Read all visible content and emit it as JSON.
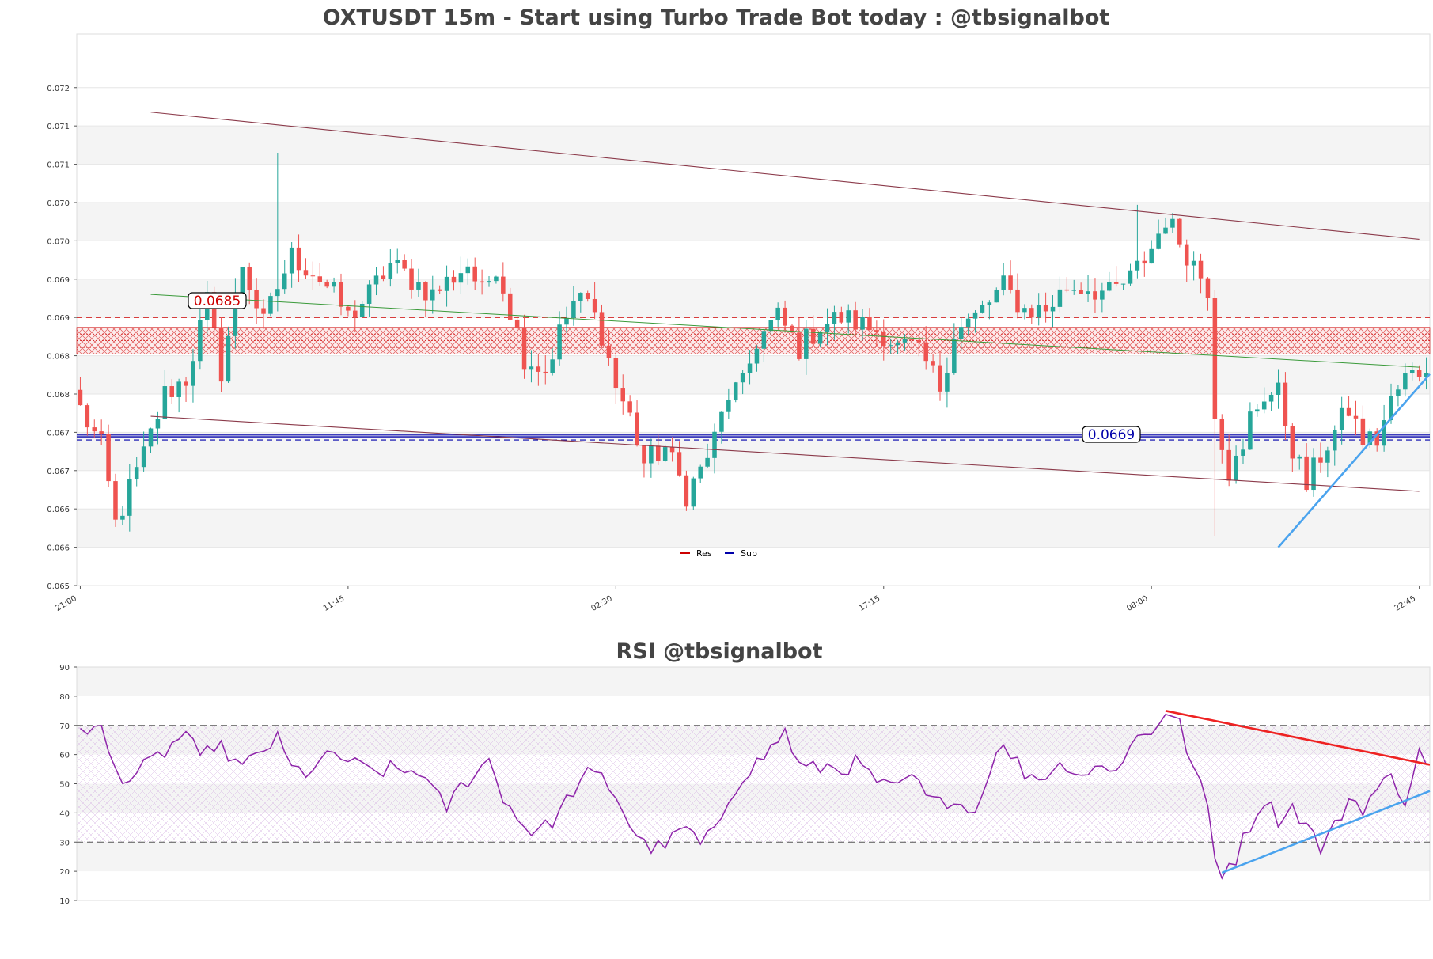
{
  "colors": {
    "up": "#26a69a",
    "down": "#ef5350",
    "res": "#cc0000",
    "sup": "#0000aa",
    "rsi": "#8e24aa",
    "trend_red": "#ee2222",
    "trend_blue": "#4aa3ee",
    "channel": "#8b3a4a",
    "ma": "#3a9a3a",
    "band": "#f4f4f4",
    "title": "#444444"
  },
  "chart_data": [
    {
      "type": "candlestick",
      "title": "OXTUSDT 15m - Start using Turbo Trade Bot today : @tbsignalbot",
      "ylim": [
        0.065,
        0.0722
      ],
      "y_ticks": [
        {
          "value": 0.065,
          "label": "0.065"
        },
        {
          "value": 0.0655,
          "label": "0.066"
        },
        {
          "value": 0.066,
          "label": "0.066"
        },
        {
          "value": 0.0665,
          "label": "0.067"
        },
        {
          "value": 0.067,
          "label": "0.067"
        },
        {
          "value": 0.0675,
          "label": "0.068"
        },
        {
          "value": 0.068,
          "label": "0.068"
        },
        {
          "value": 0.0685,
          "label": "0.069"
        },
        {
          "value": 0.069,
          "label": "0.069"
        },
        {
          "value": 0.0695,
          "label": "0.070"
        },
        {
          "value": 0.07,
          "label": "0.070"
        },
        {
          "value": 0.0705,
          "label": "0.071"
        },
        {
          "value": 0.071,
          "label": "0.071"
        },
        {
          "value": 0.0715,
          "label": "0.072"
        }
      ],
      "x_count": 192,
      "x_ticks": [
        {
          "index": 0,
          "label": "21:00"
        },
        {
          "index": 38,
          "label": "11:45"
        },
        {
          "index": 76,
          "label": "02:30"
        },
        {
          "index": 114,
          "label": "17:15"
        },
        {
          "index": 152,
          "label": "08:00"
        },
        {
          "index": 190,
          "label": "22:45"
        }
      ],
      "resistance": {
        "value": 0.0685,
        "label": "0.0685",
        "zone": [
          0.06802,
          0.06837
        ]
      },
      "support": {
        "value": 0.0669,
        "label": "0.0669",
        "dense": 0.06695
      },
      "legend": [
        {
          "name": "Res",
          "color": "#cc0000"
        },
        {
          "name": "Sup",
          "color": "#0000aa"
        }
      ],
      "lines": [
        {
          "name": "channel-upper",
          "x": [
            10,
            190
          ],
          "y": [
            0.07118,
            0.06952
          ]
        },
        {
          "name": "channel-lower",
          "x": [
            10,
            190
          ],
          "y": [
            0.06721,
            0.06623
          ]
        },
        {
          "name": "ma-line",
          "x": [
            10,
            190
          ],
          "y": [
            0.0688,
            0.06785
          ]
        },
        {
          "name": "trend-support",
          "x": [
            170,
            192
          ],
          "y": [
            0.0655,
            0.06776
          ]
        }
      ],
      "anchors": [
        [
          0,
          0.0673
        ],
        [
          3,
          0.0668
        ],
        [
          5,
          0.0658
        ],
        [
          9,
          0.0667
        ],
        [
          12,
          0.0675
        ],
        [
          15,
          0.0677
        ],
        [
          18,
          0.0687
        ],
        [
          20,
          0.0678
        ],
        [
          23,
          0.0692
        ],
        [
          26,
          0.0684
        ],
        [
          28,
          0.0689
        ],
        [
          30,
          0.0693
        ],
        [
          33,
          0.0691
        ],
        [
          36,
          0.0688
        ],
        [
          38,
          0.0685
        ],
        [
          41,
          0.0688
        ],
        [
          44,
          0.0692
        ],
        [
          47,
          0.069
        ],
        [
          50,
          0.0688
        ],
        [
          55,
          0.0692
        ],
        [
          57,
          0.0688
        ],
        [
          59,
          0.0692
        ],
        [
          61,
          0.0686
        ],
        [
          63,
          0.068
        ],
        [
          66,
          0.0678
        ],
        [
          68,
          0.0683
        ],
        [
          70,
          0.0687
        ],
        [
          72,
          0.0687
        ],
        [
          74,
          0.0683
        ],
        [
          76,
          0.0676
        ],
        [
          78,
          0.0672
        ],
        [
          80,
          0.0666
        ],
        [
          83,
          0.0668
        ],
        [
          86,
          0.0662
        ],
        [
          88,
          0.0665
        ],
        [
          90,
          0.0669
        ],
        [
          92,
          0.0675
        ],
        [
          94,
          0.0676
        ],
        [
          96,
          0.0682
        ],
        [
          99,
          0.0685
        ],
        [
          102,
          0.0681
        ],
        [
          105,
          0.0684
        ],
        [
          108,
          0.0685
        ],
        [
          111,
          0.0684
        ],
        [
          114,
          0.0683
        ],
        [
          116,
          0.0681
        ],
        [
          118,
          0.0681
        ],
        [
          120,
          0.0679
        ],
        [
          122,
          0.0676
        ],
        [
          124,
          0.0683
        ],
        [
          127,
          0.0685
        ],
        [
          131,
          0.0689
        ],
        [
          134,
          0.0686
        ],
        [
          137,
          0.0686
        ],
        [
          140,
          0.0689
        ],
        [
          143,
          0.0689
        ],
        [
          146,
          0.0688
        ],
        [
          149,
          0.069
        ],
        [
          152,
          0.0694
        ],
        [
          154,
          0.0698
        ],
        [
          156,
          0.0695
        ],
        [
          158,
          0.0692
        ],
        [
          160,
          0.0689
        ],
        [
          161,
          0.0673
        ],
        [
          163,
          0.0665
        ],
        [
          165,
          0.0667
        ],
        [
          166,
          0.0672
        ],
        [
          168,
          0.0675
        ],
        [
          170,
          0.0675
        ],
        [
          172,
          0.0668
        ],
        [
          174,
          0.0663
        ],
        [
          176,
          0.0667
        ],
        [
          178,
          0.067
        ],
        [
          180,
          0.0673
        ],
        [
          182,
          0.0669
        ],
        [
          184,
          0.0669
        ],
        [
          186,
          0.0674
        ],
        [
          188,
          0.0677
        ],
        [
          190,
          0.0678
        ],
        [
          192,
          0.068
        ]
      ],
      "spikes": [
        {
          "index": 28,
          "high": 0.07065
        },
        {
          "index": 150,
          "high": 0.06997
        },
        {
          "index": 161,
          "low": 0.06565
        }
      ]
    },
    {
      "type": "line",
      "title": "RSI @tbsignalbot",
      "ylim": [
        10,
        90
      ],
      "y_ticks": [
        10,
        20,
        30,
        40,
        50,
        60,
        70,
        80,
        90
      ],
      "levels": [
        30,
        70
      ],
      "x_count": 192,
      "anchors": [
        [
          0,
          70
        ],
        [
          3,
          68
        ],
        [
          5,
          54
        ],
        [
          7,
          52
        ],
        [
          10,
          57
        ],
        [
          13,
          63
        ],
        [
          15,
          68
        ],
        [
          17,
          57
        ],
        [
          19,
          64
        ],
        [
          21,
          60
        ],
        [
          23,
          55
        ],
        [
          26,
          62
        ],
        [
          28,
          65
        ],
        [
          30,
          55
        ],
        [
          32,
          54
        ],
        [
          34,
          57
        ],
        [
          36,
          60
        ],
        [
          38,
          58
        ],
        [
          40,
          55
        ],
        [
          42,
          54
        ],
        [
          44,
          55
        ],
        [
          46,
          54
        ],
        [
          48,
          55
        ],
        [
          50,
          47
        ],
        [
          52,
          42
        ],
        [
          54,
          49
        ],
        [
          56,
          54
        ],
        [
          58,
          58
        ],
        [
          60,
          46
        ],
        [
          62,
          38
        ],
        [
          64,
          34
        ],
        [
          66,
          35
        ],
        [
          68,
          40
        ],
        [
          70,
          48
        ],
        [
          72,
          53
        ],
        [
          74,
          52
        ],
        [
          76,
          46
        ],
        [
          78,
          36
        ],
        [
          80,
          29
        ],
        [
          82,
          28
        ],
        [
          84,
          31
        ],
        [
          86,
          35
        ],
        [
          88,
          29
        ],
        [
          90,
          33
        ],
        [
          92,
          45
        ],
        [
          94,
          53
        ],
        [
          96,
          57
        ],
        [
          98,
          62
        ],
        [
          100,
          68
        ],
        [
          102,
          56
        ],
        [
          104,
          55
        ],
        [
          106,
          56
        ],
        [
          108,
          55
        ],
        [
          110,
          57
        ],
        [
          112,
          53
        ],
        [
          114,
          49
        ],
        [
          116,
          48
        ],
        [
          118,
          53
        ],
        [
          120,
          45
        ],
        [
          122,
          43
        ],
        [
          124,
          46
        ],
        [
          126,
          40
        ],
        [
          128,
          46
        ],
        [
          130,
          63
        ],
        [
          132,
          60
        ],
        [
          134,
          54
        ],
        [
          136,
          52
        ],
        [
          138,
          55
        ],
        [
          140,
          57
        ],
        [
          142,
          53
        ],
        [
          144,
          56
        ],
        [
          146,
          54
        ],
        [
          148,
          59
        ],
        [
          150,
          66
        ],
        [
          152,
          68
        ],
        [
          154,
          75
        ],
        [
          156,
          70
        ],
        [
          158,
          55
        ],
        [
          160,
          42
        ],
        [
          161,
          24
        ],
        [
          162,
          20
        ],
        [
          164,
          25
        ],
        [
          166,
          36
        ],
        [
          168,
          45
        ],
        [
          170,
          38
        ],
        [
          172,
          42
        ],
        [
          174,
          36
        ],
        [
          176,
          28
        ],
        [
          178,
          35
        ],
        [
          180,
          45
        ],
        [
          182,
          42
        ],
        [
          184,
          48
        ],
        [
          186,
          52
        ],
        [
          188,
          45
        ],
        [
          190,
          60
        ],
        [
          192,
          57
        ]
      ],
      "lines": [
        {
          "name": "rsi-trend-down",
          "x": [
            154,
            192
          ],
          "y": [
            75,
            56.5
          ]
        },
        {
          "name": "rsi-trend-up",
          "x": [
            162,
            192
          ],
          "y": [
            19.5,
            47.5
          ]
        }
      ]
    }
  ]
}
